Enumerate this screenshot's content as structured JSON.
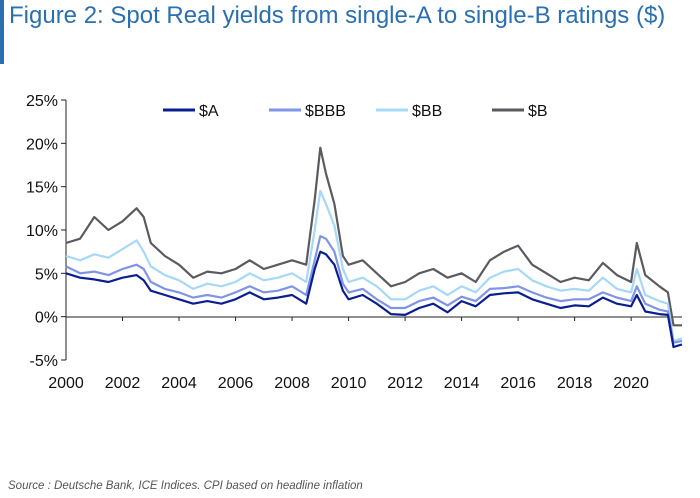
{
  "title": "Figure 2: Spot Real yields from single-A to single-B ratings ($)",
  "source": "Source : Deutsche Bank, ICE Indices. CPI based on headline inflation",
  "colors": {
    "title": "#2a6fb0",
    "A": "#0a1f8f",
    "BBB": "#7f94e6",
    "BB": "#a6d8f7",
    "B": "#5a5a60"
  },
  "chart_data": {
    "type": "line",
    "title": "Figure 2: Spot Real yields from single-A to single-B ratings ($)",
    "xlabel": "",
    "ylabel": "",
    "xlim": [
      2000,
      2021.8
    ],
    "ylim": [
      -5,
      25
    ],
    "x_ticks": [
      "2000",
      "2002",
      "2004",
      "2006",
      "2008",
      "2010",
      "2012",
      "2014",
      "2016",
      "2018",
      "2020"
    ],
    "y_ticks": [
      "-5%",
      "0%",
      "5%",
      "10%",
      "15%",
      "20%",
      "25%"
    ],
    "legend_position": "top",
    "x": [
      2000.0,
      2000.5,
      2001.0,
      2001.5,
      2002.0,
      2002.5,
      2002.75,
      2003.0,
      2003.5,
      2004.0,
      2004.5,
      2005.0,
      2005.5,
      2006.0,
      2006.5,
      2007.0,
      2007.5,
      2008.0,
      2008.5,
      2008.8,
      2009.0,
      2009.2,
      2009.5,
      2009.8,
      2010.0,
      2010.5,
      2011.0,
      2011.5,
      2012.0,
      2012.5,
      2013.0,
      2013.5,
      2014.0,
      2014.5,
      2015.0,
      2015.5,
      2016.0,
      2016.5,
      2017.0,
      2017.5,
      2018.0,
      2018.5,
      2019.0,
      2019.5,
      2020.0,
      2020.2,
      2020.5,
      2021.0,
      2021.3,
      2021.5,
      2021.8
    ],
    "series": [
      {
        "name": "$A",
        "key": "A",
        "values": [
          5.0,
          4.5,
          4.3,
          4.0,
          4.5,
          4.8,
          4.2,
          3.0,
          2.5,
          2.0,
          1.5,
          1.8,
          1.5,
          2.0,
          2.8,
          2.0,
          2.2,
          2.5,
          1.5,
          5.5,
          7.5,
          7.2,
          6.0,
          3.0,
          2.0,
          2.5,
          1.5,
          0.3,
          0.2,
          1.0,
          1.5,
          0.5,
          1.8,
          1.2,
          2.5,
          2.7,
          2.8,
          2.0,
          1.5,
          1.0,
          1.3,
          1.2,
          2.2,
          1.5,
          1.2,
          2.5,
          0.6,
          0.3,
          0.2,
          -3.5,
          -3.2
        ]
      },
      {
        "name": "$BBB",
        "key": "BBB",
        "values": [
          5.8,
          5.0,
          5.2,
          4.8,
          5.5,
          6.0,
          5.5,
          4.0,
          3.2,
          2.8,
          2.2,
          2.5,
          2.2,
          2.8,
          3.5,
          2.8,
          3.0,
          3.5,
          2.5,
          6.5,
          9.3,
          9.0,
          7.5,
          3.8,
          2.8,
          3.2,
          2.0,
          1.0,
          1.0,
          1.8,
          2.2,
          1.3,
          2.3,
          1.8,
          3.2,
          3.3,
          3.5,
          2.8,
          2.2,
          1.8,
          2.0,
          2.0,
          2.8,
          2.2,
          1.8,
          3.5,
          1.5,
          0.8,
          0.6,
          -3.0,
          -2.8
        ]
      },
      {
        "name": "$BB",
        "key": "BB",
        "values": [
          7.0,
          6.5,
          7.2,
          6.8,
          7.8,
          8.8,
          7.5,
          5.8,
          4.8,
          4.2,
          3.2,
          3.8,
          3.5,
          4.0,
          5.0,
          4.2,
          4.5,
          5.0,
          4.0,
          10.0,
          14.5,
          13.0,
          10.5,
          5.5,
          4.0,
          4.5,
          3.5,
          2.0,
          2.0,
          3.0,
          3.5,
          2.5,
          3.5,
          2.8,
          4.5,
          5.2,
          5.5,
          4.2,
          3.5,
          3.0,
          3.2,
          3.0,
          4.5,
          3.2,
          2.8,
          5.5,
          2.5,
          1.8,
          1.5,
          -2.8,
          -2.5
        ]
      },
      {
        "name": "$B",
        "key": "B",
        "values": [
          8.5,
          9.0,
          11.5,
          10.0,
          11.0,
          12.5,
          11.5,
          8.5,
          7.0,
          6.0,
          4.5,
          5.2,
          5.0,
          5.5,
          6.5,
          5.5,
          6.0,
          6.5,
          6.0,
          13.5,
          19.5,
          16.5,
          13.0,
          7.0,
          6.0,
          6.5,
          5.0,
          3.5,
          4.0,
          5.0,
          5.5,
          4.5,
          5.0,
          4.0,
          6.5,
          7.5,
          8.2,
          6.0,
          5.0,
          4.0,
          4.5,
          4.2,
          6.2,
          4.8,
          4.0,
          8.5,
          4.8,
          3.5,
          2.8,
          -1.0,
          -1.0
        ]
      }
    ]
  }
}
